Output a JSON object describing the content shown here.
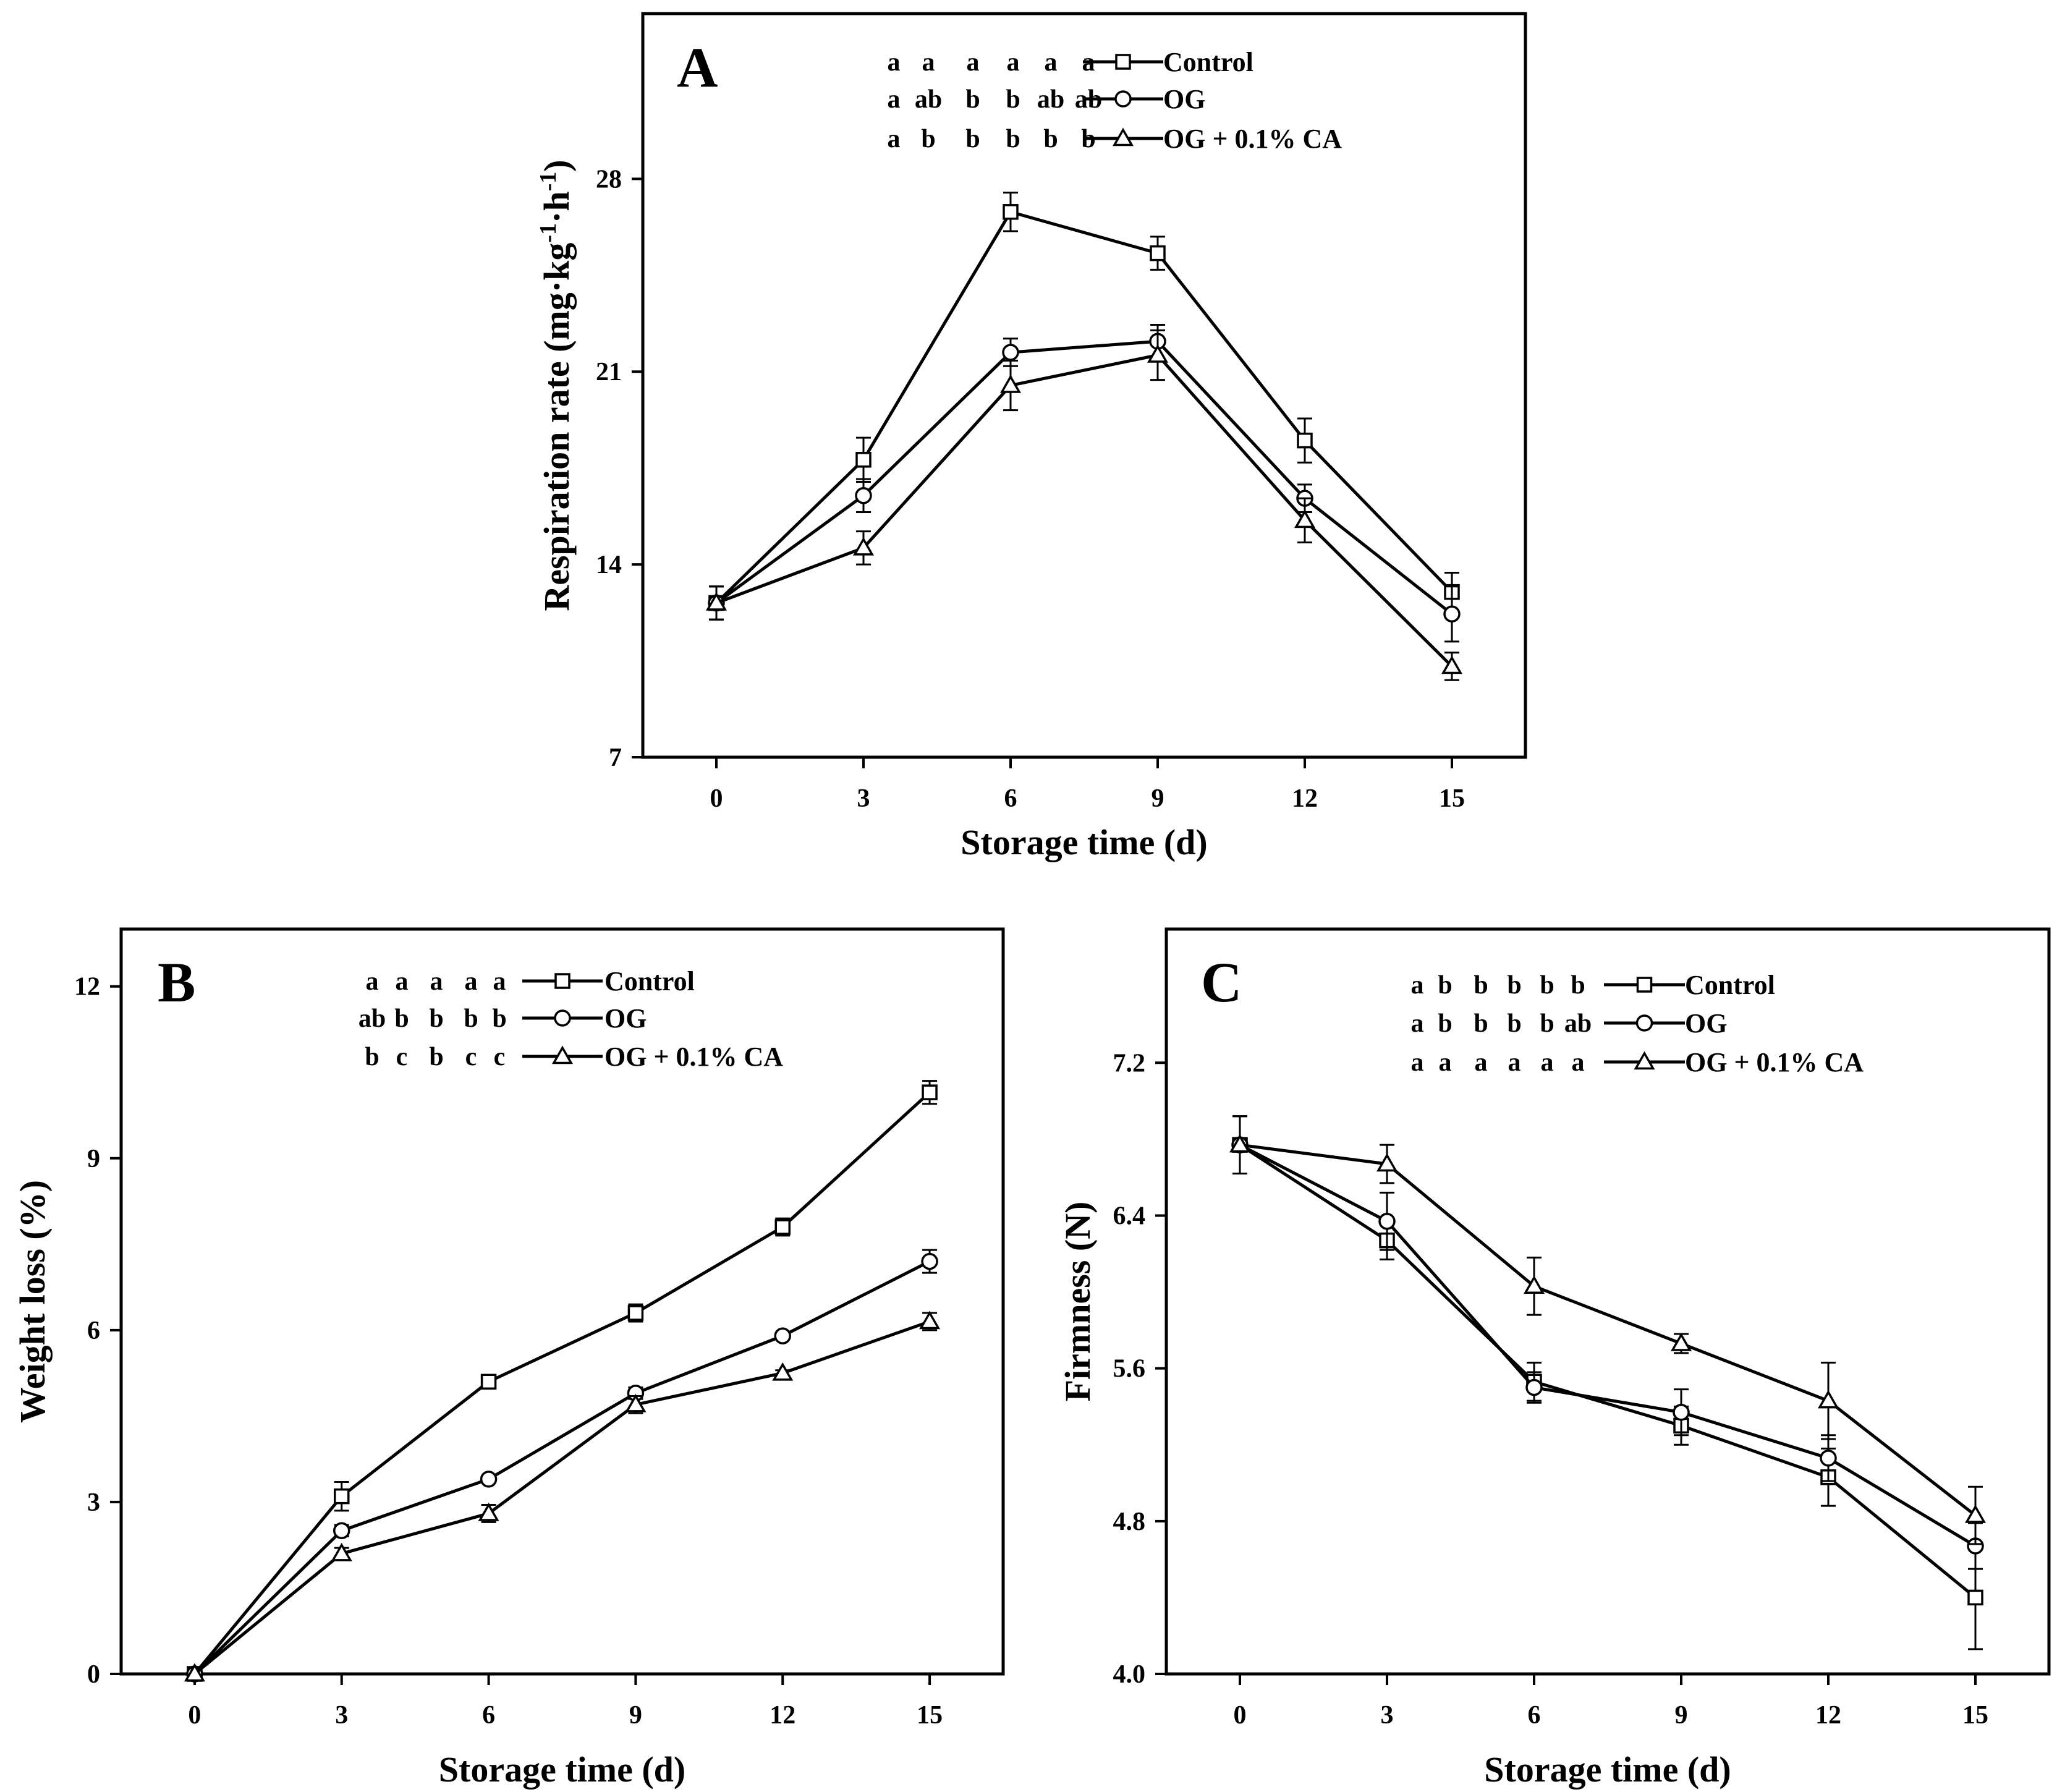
{
  "figure": {
    "series_names": [
      "Control",
      "OG",
      "OG + 0.1% CA"
    ],
    "markers": [
      "square",
      "circle",
      "triangle"
    ]
  },
  "chart_data": [
    {
      "type": "line",
      "panel": "A",
      "panel_label": "A",
      "xlabel": "Storage time (d)",
      "ylabel": "Respiration rate (mg·kg⁻¹·h⁻¹)",
      "ylabel_parts": [
        "Respiration rate (mg·kg",
        "-1",
        "·h",
        "-1",
        ")"
      ],
      "x": [
        0,
        3,
        6,
        9,
        12,
        15
      ],
      "xlim": [
        -1.5,
        16.5
      ],
      "ylim": [
        7,
        34
      ],
      "yticks": [
        7,
        14,
        21,
        28
      ],
      "legend_position": "top",
      "series": [
        {
          "name": "Control",
          "marker": "square",
          "values": [
            12.6,
            17.8,
            26.8,
            25.3,
            18.5,
            13.0
          ],
          "errors": [
            0.6,
            0.8,
            0.7,
            0.6,
            0.8,
            0.7
          ],
          "letters": [
            "a",
            "a",
            "a",
            "a",
            "a",
            "a"
          ]
        },
        {
          "name": "OG",
          "marker": "circle",
          "values": [
            12.6,
            16.5,
            21.7,
            22.1,
            16.4,
            12.2
          ],
          "errors": [
            0.6,
            0.6,
            0.5,
            0.6,
            0.5,
            1.0
          ],
          "letters": [
            "a",
            "ab",
            "b",
            "b",
            "ab",
            "ab"
          ]
        },
        {
          "name": "OG + 0.1% CA",
          "marker": "triangle",
          "values": [
            12.6,
            14.6,
            20.5,
            21.6,
            15.6,
            10.3
          ],
          "errors": [
            0.6,
            0.6,
            0.9,
            0.9,
            0.8,
            0.5
          ],
          "letters": [
            "a",
            "b",
            "b",
            "b",
            "b",
            "b"
          ]
        }
      ]
    },
    {
      "type": "line",
      "panel": "B",
      "panel_label": "B",
      "xlabel": "Storage time (d)",
      "ylabel": "Weight loss (%)",
      "x": [
        0,
        3,
        6,
        9,
        12,
        15
      ],
      "xlim": [
        -1.5,
        16.5
      ],
      "ylim": [
        0,
        13
      ],
      "yticks": [
        0,
        3,
        6,
        9,
        12
      ],
      "legend_position": "top",
      "series": [
        {
          "name": "Control",
          "marker": "square",
          "values": [
            0,
            3.1,
            5.1,
            6.3,
            7.8,
            10.15
          ],
          "errors": [
            0.1,
            0.25,
            0.08,
            0.15,
            0.15,
            0.2
          ],
          "letters": [
            "a",
            "a",
            "a",
            "a",
            "a"
          ]
        },
        {
          "name": "OG",
          "marker": "circle",
          "values": [
            0,
            2.5,
            3.4,
            4.9,
            5.9,
            7.2
          ],
          "errors": [
            0.1,
            0.1,
            0.05,
            0.1,
            0.05,
            0.2
          ],
          "letters": [
            "ab",
            "b",
            "b",
            "b",
            "b"
          ]
        },
        {
          "name": "OG + 0.1% CA",
          "marker": "triangle",
          "values": [
            0,
            2.1,
            2.8,
            4.7,
            5.25,
            6.15
          ],
          "errors": [
            0.1,
            0.1,
            0.15,
            0.15,
            0.05,
            0.15
          ],
          "letters": [
            "b",
            "c",
            "b",
            "c",
            "c"
          ]
        }
      ]
    },
    {
      "type": "line",
      "panel": "C",
      "panel_label": "C",
      "xlabel": "Storage time (d)",
      "ylabel": "Firmness (N)",
      "x": [
        0,
        3,
        6,
        9,
        12,
        15
      ],
      "xlim": [
        -1.5,
        16.5
      ],
      "ylim": [
        4.0,
        7.9
      ],
      "yticks": [
        4.0,
        4.8,
        5.6,
        6.4,
        7.2
      ],
      "tick_decimals": 1,
      "legend_position": "top",
      "series": [
        {
          "name": "Control",
          "marker": "square",
          "values": [
            6.77,
            6.27,
            5.53,
            5.3,
            5.03,
            4.4
          ],
          "errors": [
            0.15,
            0.1,
            0.1,
            0.1,
            0.15,
            0.27
          ],
          "letters": [
            "a",
            "b",
            "b",
            "b",
            "b",
            "b"
          ]
        },
        {
          "name": "OG",
          "marker": "circle",
          "values": [
            6.77,
            6.37,
            5.5,
            5.37,
            5.13,
            4.67
          ],
          "errors": [
            0.15,
            0.15,
            0.08,
            0.12,
            0.12,
            0.12
          ],
          "letters": [
            "a",
            "b",
            "b",
            "b",
            "b",
            "ab"
          ]
        },
        {
          "name": "OG + 0.1% CA",
          "marker": "triangle",
          "values": [
            6.77,
            6.67,
            6.03,
            5.73,
            5.43,
            4.83
          ],
          "errors": [
            0.15,
            0.1,
            0.15,
            0.05,
            0.2,
            0.15
          ],
          "letters": [
            "a",
            "a",
            "a",
            "a",
            "a",
            "a"
          ]
        }
      ]
    }
  ]
}
